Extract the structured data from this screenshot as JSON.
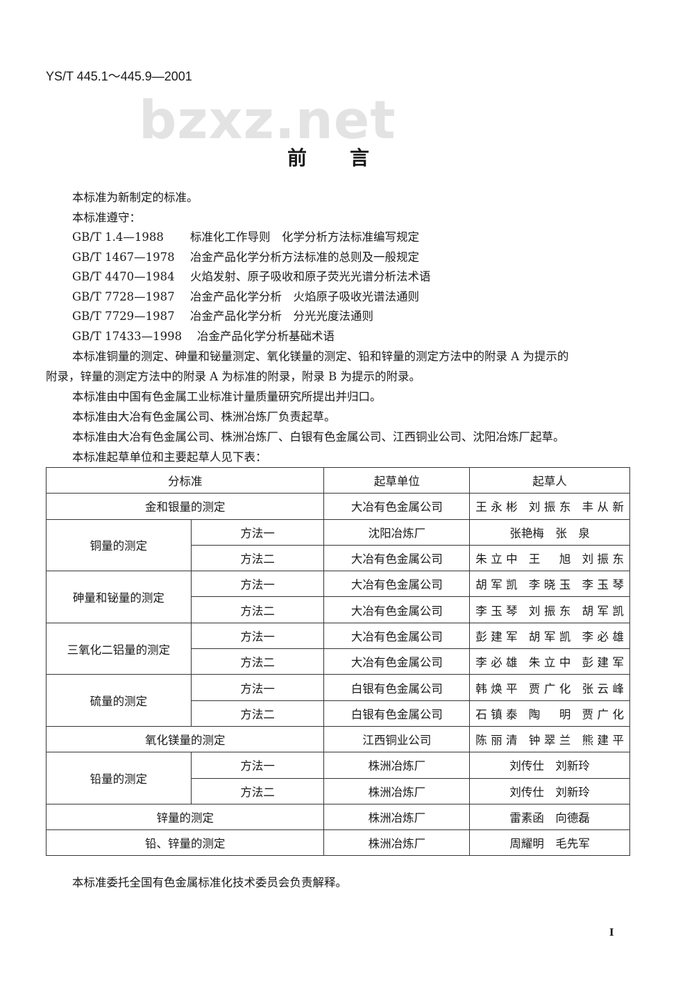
{
  "header": {
    "code": "YS/T 445.1～445.9—2001"
  },
  "watermark": "bzxz.net",
  "title": "前言",
  "intro": [
    "本标准为新制定的标准。",
    "本标准遵守："
  ],
  "references": [
    {
      "code": "GB/T 1.4—1988",
      "title": "标准化工作导则　化学分析方法标准编写规定"
    },
    {
      "code": "GB/T 1467—1978",
      "title": "冶金产品化学分析方法标准的总则及一般规定"
    },
    {
      "code": "GB/T 4470—1984",
      "title": "火焰发射、原子吸收和原子荧光光谱分析法术语"
    },
    {
      "code": "GB/T 7728—1987",
      "title": "冶金产品化学分析　火焰原子吸收光谱法通则"
    },
    {
      "code": "GB/T 7729—1987",
      "title": "冶金产品化学分析　分光光度法通则"
    },
    {
      "code": "GB/T 17433—1998",
      "title": "冶金产品化学分析基础术语"
    }
  ],
  "paragraphs": {
    "appendix_l1": "本标准铜量的测定、砷量和铋量测定、氧化镁量的测定、铅和锌量的测定方法中的附录 A 为提示的",
    "appendix_l2": "附录，锌量的测定方法中的附录 A 为标准的附录，附录 B 为提示的附录。",
    "proposed": "本标准由中国有色金属工业标准计量质量研究所提出并归口。",
    "responsible": "本标准由大冶有色金属公司、株洲冶炼厂负责起草。",
    "drafted": "本标准由大冶有色金属公司、株洲冶炼厂、白银有色金属公司、江西铜业公司、沈阳冶炼厂起草。",
    "table_intro": "本标准起草单位和主要起草人见下表：",
    "closing": "本标准委托全国有色金属标准化技术委员会负责解释。"
  },
  "table": {
    "headers": [
      "分标准",
      "起草单位",
      "起草人"
    ],
    "rows": {
      "gold": {
        "name": "金和银量的测定",
        "unit": "大冶有色金属公司",
        "people": [
          "王永彬",
          "刘振东",
          "丰从新"
        ]
      },
      "copper": {
        "name": "铜量的测定",
        "m1": {
          "method": "方法一",
          "unit": "沈阳冶炼厂",
          "people": [
            "张艳梅",
            "张　泉"
          ]
        },
        "m2": {
          "method": "方法二",
          "unit": "大冶有色金属公司",
          "people": [
            "朱立中",
            "王　旭",
            "刘振东"
          ]
        }
      },
      "arsenic": {
        "name": "砷量和铋量的测定",
        "m1": {
          "method": "方法一",
          "unit": "大冶有色金属公司",
          "people": [
            "胡军凯",
            "李晓玉",
            "李玉琴"
          ]
        },
        "m2": {
          "method": "方法二",
          "unit": "大冶有色金属公司",
          "people": [
            "李玉琴",
            "刘振东",
            "胡军凯"
          ]
        }
      },
      "alumina": {
        "name": "三氧化二铝量的测定",
        "m1": {
          "method": "方法一",
          "unit": "大冶有色金属公司",
          "people": [
            "彭建军",
            "胡军凯",
            "李必雄"
          ]
        },
        "m2": {
          "method": "方法二",
          "unit": "大冶有色金属公司",
          "people": [
            "李必雄",
            "朱立中",
            "彭建军"
          ]
        }
      },
      "sulfur": {
        "name": "硫量的测定",
        "m1": {
          "method": "方法一",
          "unit": "白银有色金属公司",
          "people": [
            "韩焕平",
            "贾广化",
            "张云峰"
          ]
        },
        "m2": {
          "method": "方法二",
          "unit": "白银有色金属公司",
          "people": [
            "石镇泰",
            "陶　明",
            "贾广化"
          ]
        }
      },
      "magnesia": {
        "name": "氧化镁量的测定",
        "unit": "江西铜业公司",
        "people": [
          "陈丽清",
          "钟翠兰",
          "熊建平"
        ]
      },
      "lead": {
        "name": "铅量的测定",
        "m1": {
          "method": "方法一",
          "unit": "株洲冶炼厂",
          "people": [
            "刘传仕",
            "刘新玲"
          ]
        },
        "m2": {
          "method": "方法二",
          "unit": "株洲冶炼厂",
          "people": [
            "刘传仕",
            "刘新玲"
          ]
        }
      },
      "zinc": {
        "name": "锌量的测定",
        "unit": "株洲冶炼厂",
        "people": [
          "雷素函",
          "向德磊"
        ]
      },
      "leadzinc": {
        "name": "铅、锌量的测定",
        "unit": "株洲冶炼厂",
        "people": [
          "周耀明",
          "毛先军"
        ]
      }
    }
  },
  "page_number": "I"
}
